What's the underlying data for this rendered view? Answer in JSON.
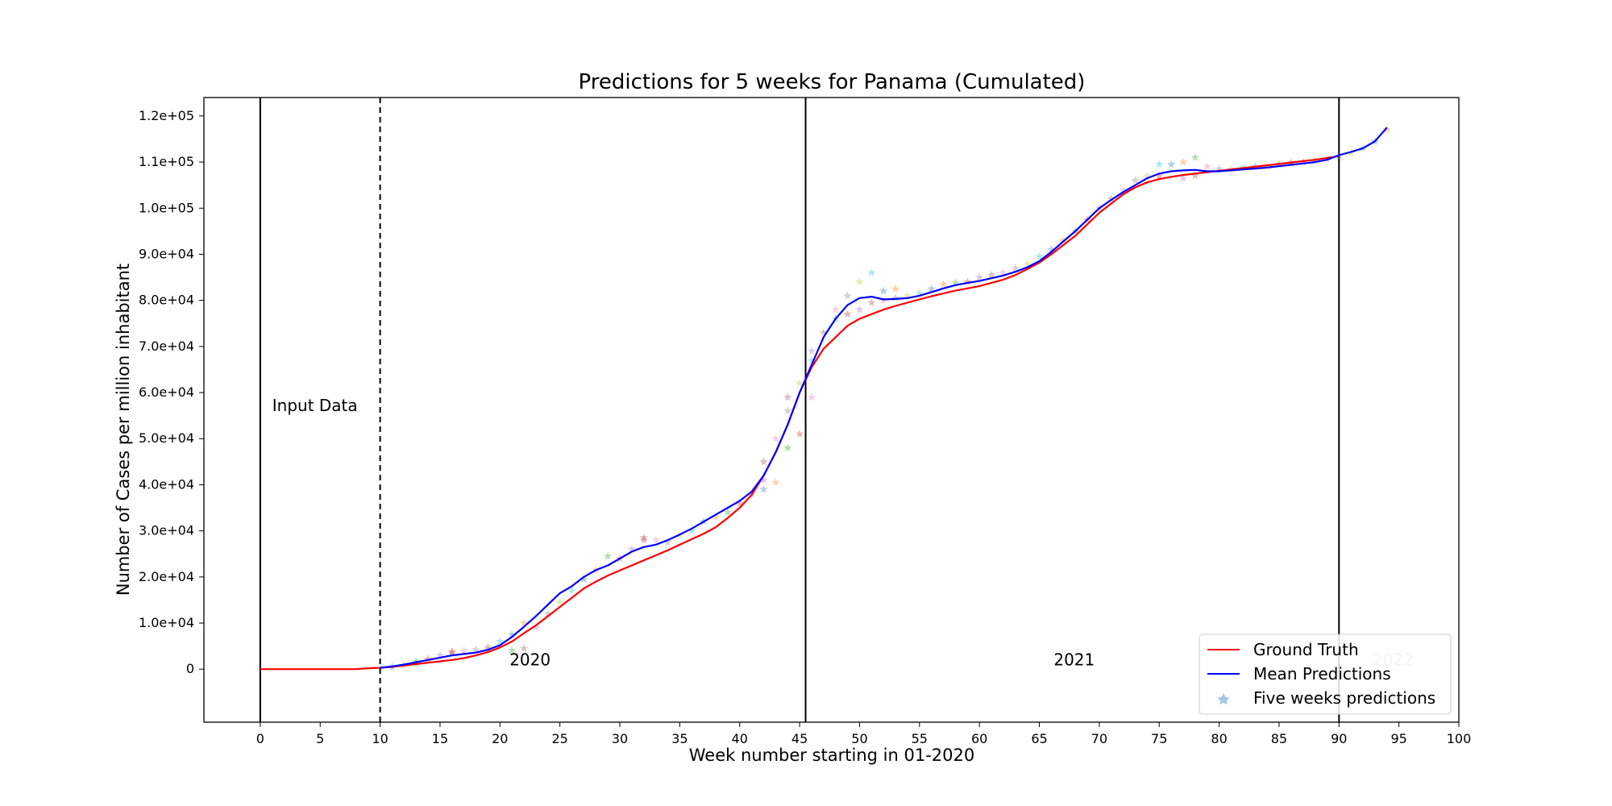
{
  "chart_data": {
    "type": "line",
    "title": "Predictions for 5 weeks for Panama (Cumulated)",
    "xlabel": "Week number starting in 01-2020",
    "ylabel": "Number of Cases per million inhabitant",
    "xlim": [
      -4.7,
      100
    ],
    "ylim": [
      -11500,
      124000
    ],
    "x_ticks": [
      0,
      5,
      10,
      15,
      20,
      25,
      30,
      35,
      40,
      45,
      50,
      55,
      60,
      65,
      70,
      75,
      80,
      85,
      90,
      95,
      100
    ],
    "y_ticks": [
      0,
      10000,
      20000,
      30000,
      40000,
      50000,
      60000,
      70000,
      80000,
      90000,
      100000,
      110000,
      120000
    ],
    "y_tick_labels": [
      "0",
      "1.0e+04",
      "2.0e+04",
      "3.0e+04",
      "4.0e+04",
      "5.0e+04",
      "6.0e+04",
      "7.0e+04",
      "8.0e+04",
      "9.0e+04",
      "1.0e+05",
      "1.1e+05",
      "1.2e+05"
    ],
    "grid": false,
    "legend_position": "bottom-right",
    "vertical_lines": [
      {
        "x": 0,
        "style": "solid"
      },
      {
        "x": 10,
        "style": "dashed"
      },
      {
        "x": 45.5,
        "style": "solid"
      },
      {
        "x": 90,
        "style": "solid"
      }
    ],
    "annotations": [
      {
        "text": "Input Data",
        "x": 1,
        "y": 56000
      },
      {
        "text": "2020",
        "x": 20.8,
        "y": 800
      },
      {
        "text": "2021",
        "x": 66.2,
        "y": 800
      },
      {
        "text": "2022",
        "x": 92.8,
        "y": 800,
        "faint": true
      }
    ],
    "series": [
      {
        "name": "Ground Truth",
        "color": "#ff0000",
        "x": [
          0,
          5,
          8,
          9,
          10,
          11,
          12,
          13,
          14,
          15,
          16,
          17,
          18,
          19,
          20,
          21,
          22,
          23,
          24,
          25,
          26,
          27,
          28,
          29,
          30,
          31,
          32,
          33,
          34,
          35,
          36,
          37,
          38,
          39,
          40,
          41,
          42,
          43,
          44,
          45,
          46,
          47,
          48,
          49,
          50,
          51,
          52,
          53,
          54,
          55,
          56,
          57,
          58,
          59,
          60,
          61,
          62,
          63,
          64,
          65,
          66,
          67,
          68,
          69,
          70,
          71,
          72,
          73,
          74,
          75,
          76,
          77,
          78,
          79,
          80,
          81,
          82,
          83,
          84,
          85,
          86,
          87,
          88,
          89,
          90
        ],
        "values": [
          0,
          0,
          0,
          200,
          300,
          500,
          800,
          1100,
          1400,
          1700,
          2000,
          2400,
          3000,
          3700,
          4700,
          6000,
          7800,
          9500,
          11500,
          13500,
          15500,
          17500,
          19000,
          20300,
          21400,
          22500,
          23600,
          24700,
          25800,
          27000,
          28200,
          29400,
          30800,
          32800,
          35000,
          37800,
          42000,
          47000,
          53000,
          60000,
          65500,
          69500,
          72000,
          74500,
          76000,
          77000,
          78000,
          78800,
          79500,
          80200,
          80900,
          81500,
          82100,
          82600,
          83100,
          83800,
          84500,
          85500,
          86800,
          88200,
          90000,
          92000,
          94000,
          96500,
          99000,
          101000,
          103000,
          104500,
          105600,
          106300,
          106800,
          107200,
          107500,
          107800,
          108100,
          108400,
          108700,
          109000,
          109300,
          109600,
          109900,
          110200,
          110500,
          110900,
          111300
        ]
      },
      {
        "name": "Mean Predictions",
        "color": "#0000ff",
        "x": [
          10,
          11,
          12,
          13,
          14,
          15,
          16,
          17,
          18,
          19,
          20,
          21,
          22,
          23,
          24,
          25,
          26,
          27,
          28,
          29,
          30,
          31,
          32,
          33,
          34,
          35,
          36,
          37,
          38,
          39,
          40,
          41,
          42,
          43,
          44,
          45,
          46,
          47,
          48,
          49,
          50,
          51,
          52,
          53,
          54,
          55,
          56,
          57,
          58,
          59,
          60,
          61,
          62,
          63,
          64,
          65,
          66,
          67,
          68,
          69,
          70,
          71,
          72,
          73,
          74,
          75,
          76,
          77,
          78,
          79,
          80,
          81,
          82,
          83,
          84,
          85,
          86,
          87,
          88,
          89,
          90,
          91,
          92,
          93,
          94
        ],
        "values": [
          300,
          600,
          1000,
          1500,
          2000,
          2500,
          3000,
          3300,
          3600,
          4200,
          5200,
          7000,
          9200,
          11500,
          14000,
          16500,
          18000,
          20000,
          21500,
          22500,
          24000,
          25500,
          26500,
          27000,
          28000,
          29200,
          30500,
          32000,
          33500,
          35000,
          36500,
          38500,
          42000,
          47000,
          53000,
          60000,
          66000,
          72000,
          76000,
          79000,
          80500,
          80800,
          80200,
          80300,
          80500,
          81000,
          81800,
          82600,
          83300,
          83800,
          84200,
          84800,
          85400,
          86200,
          87200,
          88500,
          90500,
          92800,
          95000,
          97500,
          100000,
          101800,
          103500,
          105000,
          106500,
          107500,
          108000,
          108200,
          108300,
          108000,
          108000,
          108200,
          108400,
          108600,
          108800,
          109100,
          109400,
          109700,
          110000,
          110500,
          111500,
          112200,
          113000,
          114500,
          117500
        ]
      }
    ],
    "scatter_series": {
      "name": "Five weeks predictions",
      "marker": "star",
      "alpha": 0.35,
      "colors": [
        "#1f77b4",
        "#ff7f0e",
        "#2ca02c",
        "#d62728",
        "#9467bd",
        "#8c564b",
        "#e377c2",
        "#7f7f7f",
        "#bcbd22",
        "#17becf"
      ],
      "x": [
        11,
        12,
        13,
        14,
        15,
        16,
        17,
        18,
        19,
        20,
        21,
        22,
        13,
        16,
        19,
        22,
        23,
        24,
        25,
        26,
        27,
        28,
        29,
        30,
        31,
        32,
        33,
        34,
        35,
        36,
        37,
        38,
        39,
        40,
        41,
        42,
        43,
        44,
        45,
        46,
        42,
        43,
        44,
        45,
        46,
        47,
        48,
        49,
        50,
        51,
        52,
        53,
        48,
        49,
        50,
        51,
        52,
        53,
        54,
        55,
        56,
        57,
        58,
        59,
        60,
        61,
        62,
        63,
        64,
        65,
        66,
        67,
        68,
        69,
        70,
        71,
        72,
        73,
        74,
        75,
        76,
        77,
        78,
        75,
        77,
        78,
        79,
        80,
        81,
        82,
        83,
        84,
        85,
        86,
        87,
        88,
        89,
        90,
        91,
        92,
        93,
        94,
        21,
        32,
        42,
        44,
        46
      ],
      "values": [
        500,
        800,
        1200,
        2200,
        3000,
        3500,
        4000,
        4200,
        4800,
        6000,
        7500,
        10000,
        1600,
        3800,
        4500,
        4500,
        9000,
        12000,
        14500,
        17000,
        19500,
        21500,
        24500,
        24000,
        26000,
        28000,
        28000,
        27500,
        29000,
        30000,
        32000,
        33000,
        34000,
        36000,
        38000,
        45000,
        50000,
        56000,
        62000,
        67000,
        39000,
        40500,
        48000,
        51000,
        69000,
        73000,
        78000,
        81000,
        84000,
        86000,
        82000,
        82500,
        76000,
        77000,
        78000,
        79500,
        80000,
        80500,
        81000,
        81500,
        82500,
        83500,
        83800,
        84000,
        85000,
        85500,
        86000,
        87000,
        88000,
        89500,
        91000,
        93000,
        95000,
        97500,
        100000,
        102000,
        104000,
        106000,
        107000,
        109500,
        109500,
        110000,
        111000,
        107000,
        106500,
        107000,
        109000,
        108500,
        108500,
        108800,
        109000,
        109200,
        109500,
        109800,
        110000,
        110300,
        110600,
        111000,
        112000,
        113000,
        114500,
        117000,
        4000,
        28500,
        41000,
        59000,
        59000
      ]
    }
  }
}
